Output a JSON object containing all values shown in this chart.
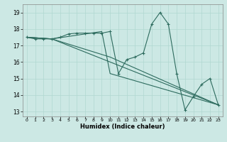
{
  "title": "",
  "xlabel": "Humidex (Indice chaleur)",
  "bg_color": "#cce8e4",
  "line_color": "#2d6b5e",
  "grid_color": "#b0d8d0",
  "xlim": [
    -0.5,
    23.5
  ],
  "ylim": [
    12.7,
    19.5
  ],
  "yticks": [
    13,
    14,
    15,
    16,
    17,
    18,
    19
  ],
  "xticks": [
    0,
    1,
    2,
    3,
    4,
    5,
    6,
    7,
    8,
    9,
    10,
    11,
    12,
    13,
    14,
    15,
    16,
    17,
    18,
    19,
    20,
    21,
    22,
    23
  ],
  "lines": [
    {
      "x": [
        0,
        1,
        2,
        3,
        4,
        5,
        6,
        7,
        8,
        9,
        10,
        11,
        12,
        13,
        14,
        15,
        16,
        17,
        18,
        19,
        20,
        21,
        22,
        23
      ],
      "y": [
        17.5,
        17.4,
        17.4,
        17.4,
        17.5,
        17.7,
        17.75,
        17.75,
        17.75,
        17.75,
        17.85,
        15.3,
        16.15,
        16.3,
        16.55,
        18.3,
        19.0,
        18.3,
        15.3,
        13.1,
        13.9,
        14.65,
        15.0,
        13.4
      ],
      "marker": true
    },
    {
      "x": [
        0,
        3,
        23
      ],
      "y": [
        17.5,
        17.4,
        13.4
      ],
      "marker": false
    },
    {
      "x": [
        0,
        3,
        10,
        23
      ],
      "y": [
        17.5,
        17.4,
        16.3,
        13.4
      ],
      "marker": false
    },
    {
      "x": [
        0,
        3,
        9,
        10,
        23
      ],
      "y": [
        17.5,
        17.4,
        17.85,
        15.3,
        13.4
      ],
      "marker": false
    }
  ]
}
